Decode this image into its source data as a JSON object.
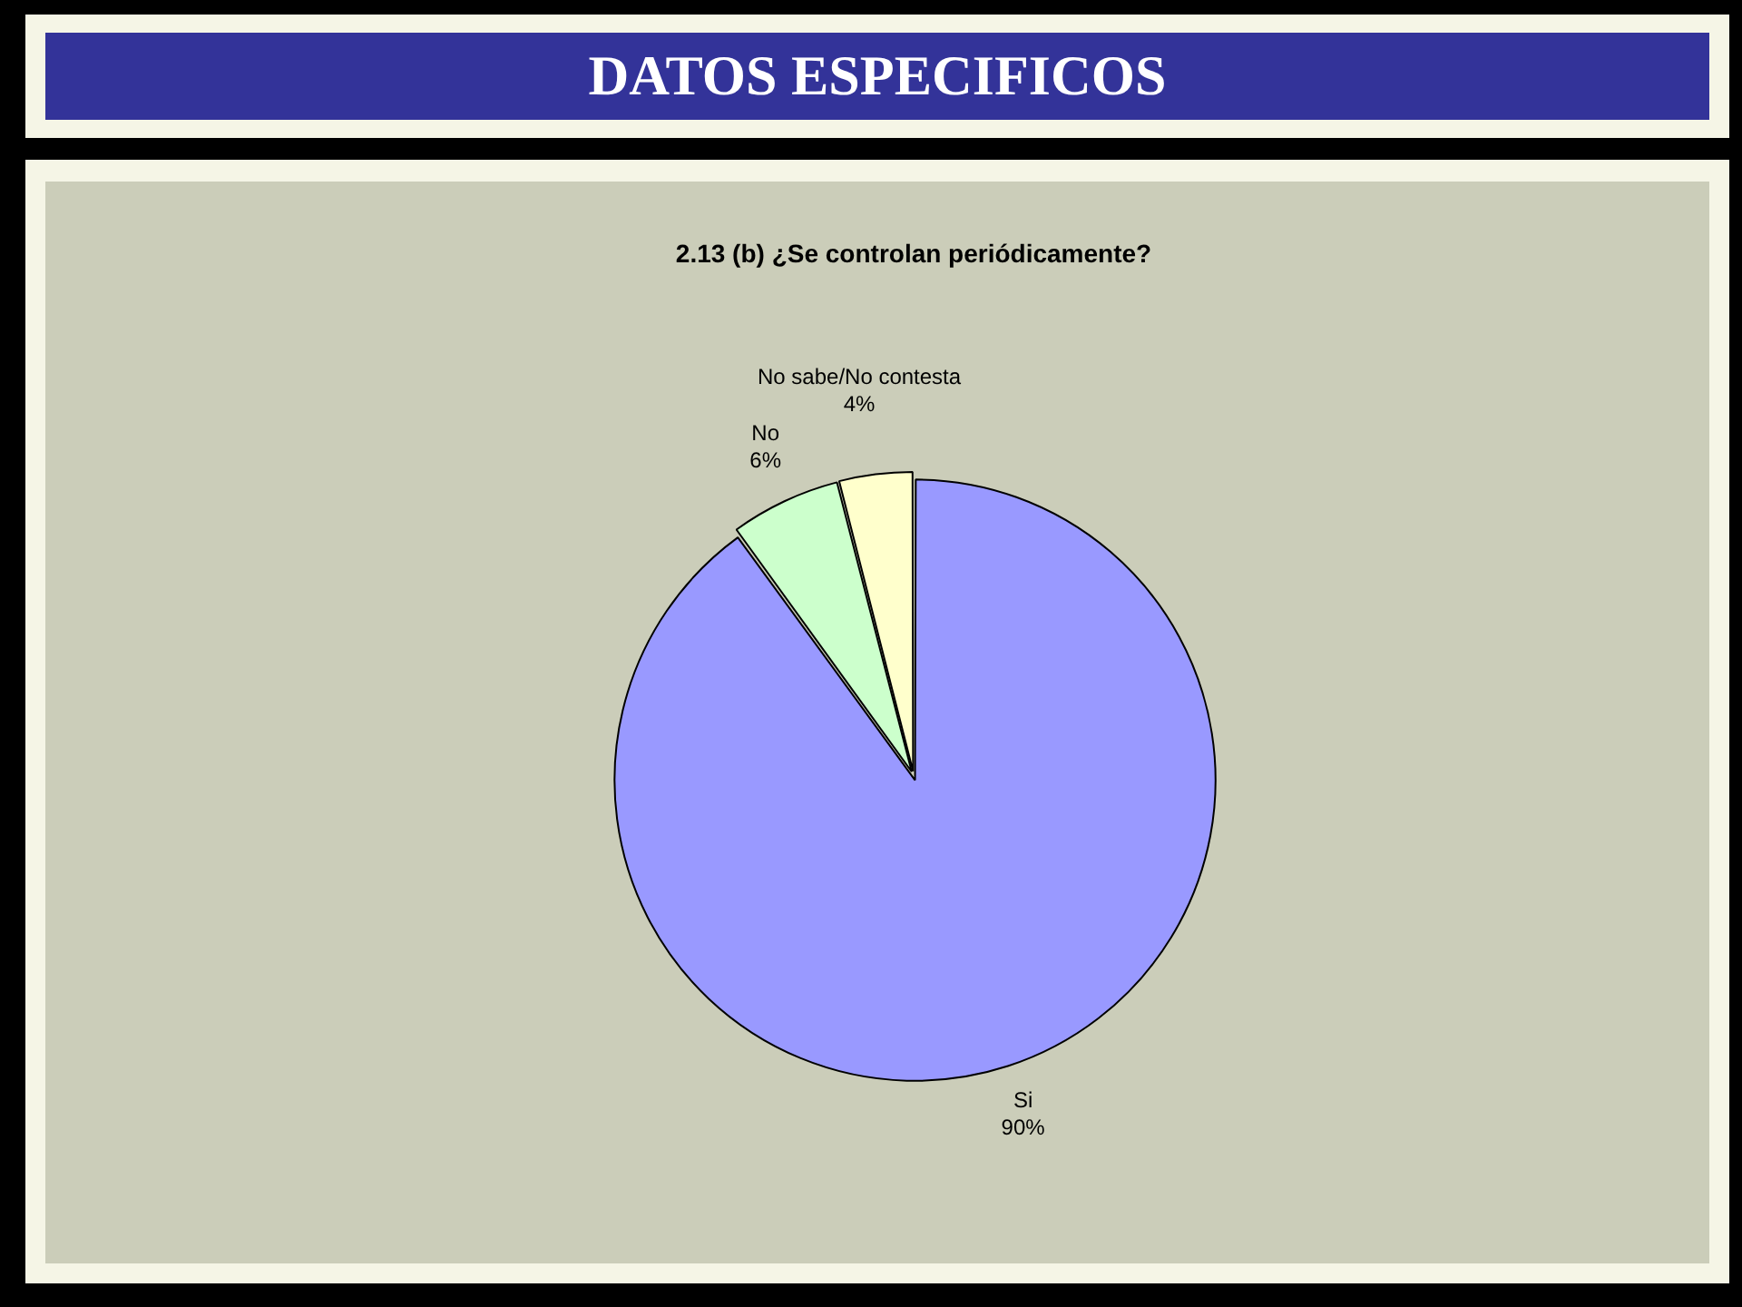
{
  "chart_data": {
    "type": "pie",
    "title": "DATOS ESPECIFICOS",
    "subtitle": "2.13 (b) ¿Se controlan periódicamente?",
    "categories": [
      "Si",
      "No",
      "No sabe/No contesta"
    ],
    "values": [
      90,
      6,
      4
    ],
    "value_labels": [
      "90%",
      "6%",
      "4%"
    ],
    "colors": [
      "#9999ff",
      "#ccffcc",
      "#ffffcc"
    ]
  }
}
